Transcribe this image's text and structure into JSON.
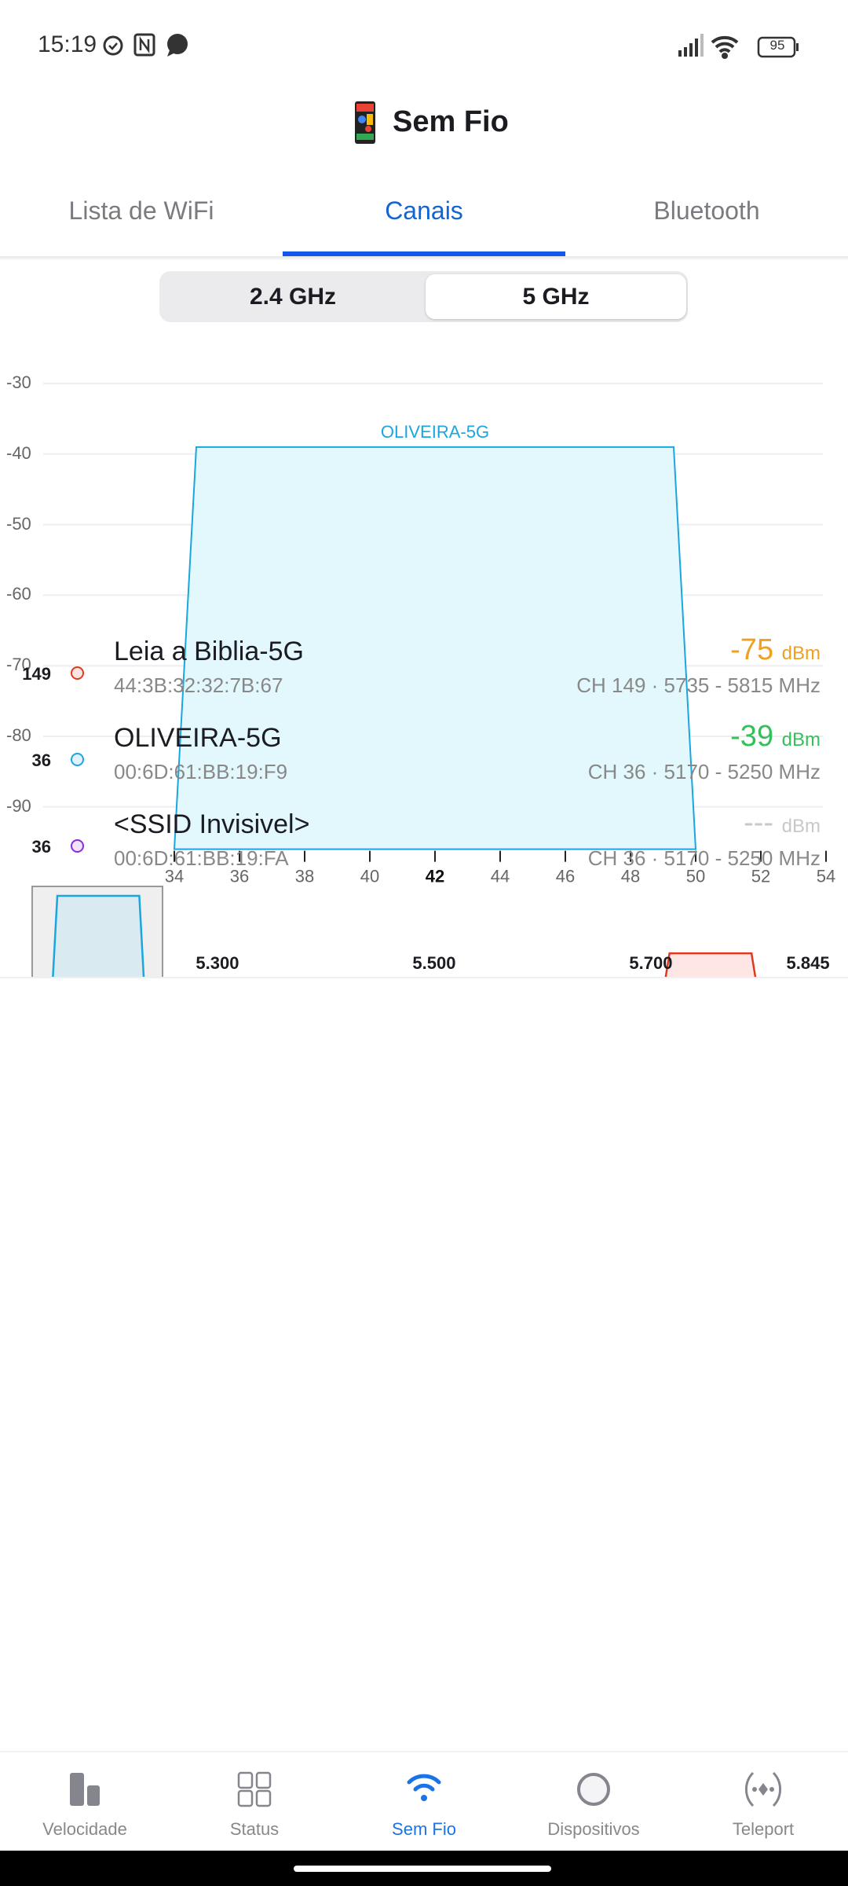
{
  "status_bar": {
    "time": "15:19",
    "battery": "95",
    "icons": [
      "alarm-icon",
      "nfc-icon",
      "chat-icon",
      "signal-icon",
      "wifi-icon",
      "battery-icon"
    ]
  },
  "header": {
    "title": "Sem Fio",
    "icon": "pixel-phone-icon"
  },
  "tabs": [
    {
      "label": "Lista de WiFi"
    },
    {
      "label": "Canais",
      "active": true
    },
    {
      "label": "Bluetooth"
    }
  ],
  "band_selector": {
    "options": [
      "2.4 GHz",
      "5 GHz"
    ],
    "selected": "5 GHz"
  },
  "chart": {
    "y_ticks": [
      "-30",
      "-40",
      "-50",
      "-60",
      "-70",
      "-80",
      "-90"
    ],
    "x_ticks": [
      "34",
      "36",
      "38",
      "40",
      "42",
      "44",
      "46",
      "48",
      "50",
      "52",
      "54"
    ],
    "x_highlight": "42",
    "ylim": [
      -96,
      -30
    ],
    "xlim": [
      34,
      54
    ],
    "series": [
      {
        "name": "OLIVEIRA-5G",
        "center_channel": 42,
        "signal": -39,
        "color": "#1aa6e0",
        "fill": "#e2f8fc"
      }
    ]
  },
  "networks": [
    {
      "channel": "149",
      "name": "Leia a Biblia-5G",
      "mac": "44:3B:32:32:7B:67",
      "signal": "-75",
      "unit": "dBm",
      "info": "CH 149 · 5735 - 5815 MHz",
      "dot": "#e0391e",
      "signal_color": "#f0a020"
    },
    {
      "channel": "36",
      "name": "OLIVEIRA-5G",
      "mac": "00:6D:61:BB:19:F9",
      "signal": "-39",
      "unit": "dBm",
      "info": "CH 36 · 5170 - 5250 MHz",
      "dot": "#1aa6e0",
      "signal_color": "#34c05a"
    },
    {
      "channel": "36",
      "name": "<SSID Invisivel>",
      "mac": "00:6D:61:BB:19:FA",
      "signal": "---",
      "unit": "dBm",
      "info": "CH 36 · 5170 - 5250 MHz",
      "dot": "#8a2be2",
      "signal_color": "#c8c8cc"
    }
  ],
  "overview": {
    "labels": [
      "5.300",
      "5.500",
      "5.700",
      "5.845"
    ],
    "bands": [
      {
        "from": 5170,
        "to": 5250,
        "signal": -39,
        "color": "#1aa6e0",
        "fill": "#d9eaf0"
      },
      {
        "from": 5735,
        "to": 5815,
        "signal": -75,
        "color": "#e0391e",
        "fill": "#fde6e3"
      }
    ]
  },
  "bottom_nav": [
    {
      "label": "Velocidade",
      "icon": "bar-chart-icon"
    },
    {
      "label": "Status",
      "icon": "grid-icon"
    },
    {
      "label": "Sem Fio",
      "icon": "wifi-icon",
      "active": true
    },
    {
      "label": "Dispositivos",
      "icon": "circle-icon"
    },
    {
      "label": "Teleport",
      "icon": "teleport-icon"
    }
  ]
}
